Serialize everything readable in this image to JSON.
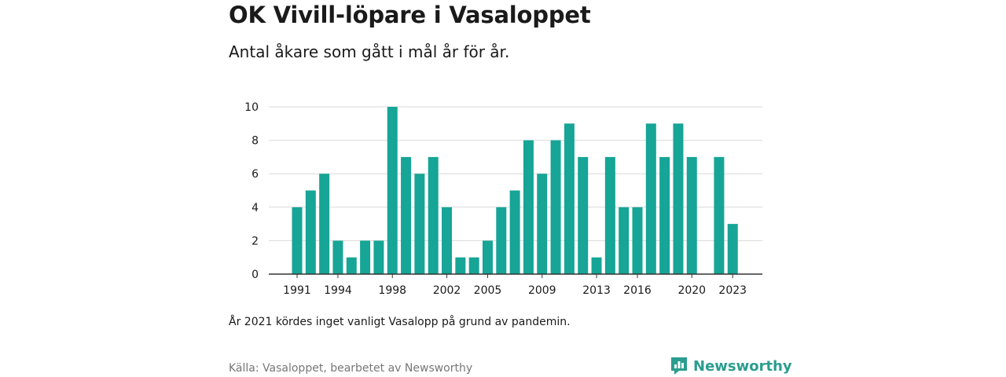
{
  "title": "OK Vivill-löpare i Vasaloppet",
  "subtitle": "Antal åkare som gått i mål år för år.",
  "note": "År 2021 kördes inget vanligt Vasalopp på grund av pandemin.",
  "source": "Källa: Vasaloppet, bearbetet av Newsworthy",
  "brand": {
    "label": "Newsworthy",
    "icon": "newsworthy-logo-icon"
  },
  "colors": {
    "bar": "#16a596",
    "grid": "#d9d9d9",
    "axis": "#333333",
    "brand": "#2a9d8f"
  },
  "chart_data": {
    "type": "bar",
    "title": "",
    "xlabel": "",
    "ylabel": "",
    "ylim": [
      0,
      10
    ],
    "yticks": [
      0,
      2,
      4,
      6,
      8,
      10
    ],
    "xticks": [
      1991,
      1994,
      1998,
      2002,
      2005,
      2009,
      2013,
      2016,
      2020,
      2023
    ],
    "grid": true,
    "categories": [
      1991,
      1992,
      1993,
      1994,
      1995,
      1996,
      1997,
      1998,
      1999,
      2000,
      2001,
      2002,
      2003,
      2004,
      2005,
      2006,
      2007,
      2008,
      2009,
      2010,
      2011,
      2012,
      2013,
      2014,
      2015,
      2016,
      2017,
      2018,
      2019,
      2020,
      2021,
      2022,
      2023
    ],
    "values": [
      4,
      5,
      6,
      2,
      1,
      2,
      2,
      10,
      7,
      6,
      7,
      4,
      1,
      1,
      2,
      4,
      5,
      8,
      6,
      8,
      9,
      7,
      1,
      7,
      4,
      4,
      9,
      7,
      9,
      7,
      null,
      7,
      3
    ]
  }
}
